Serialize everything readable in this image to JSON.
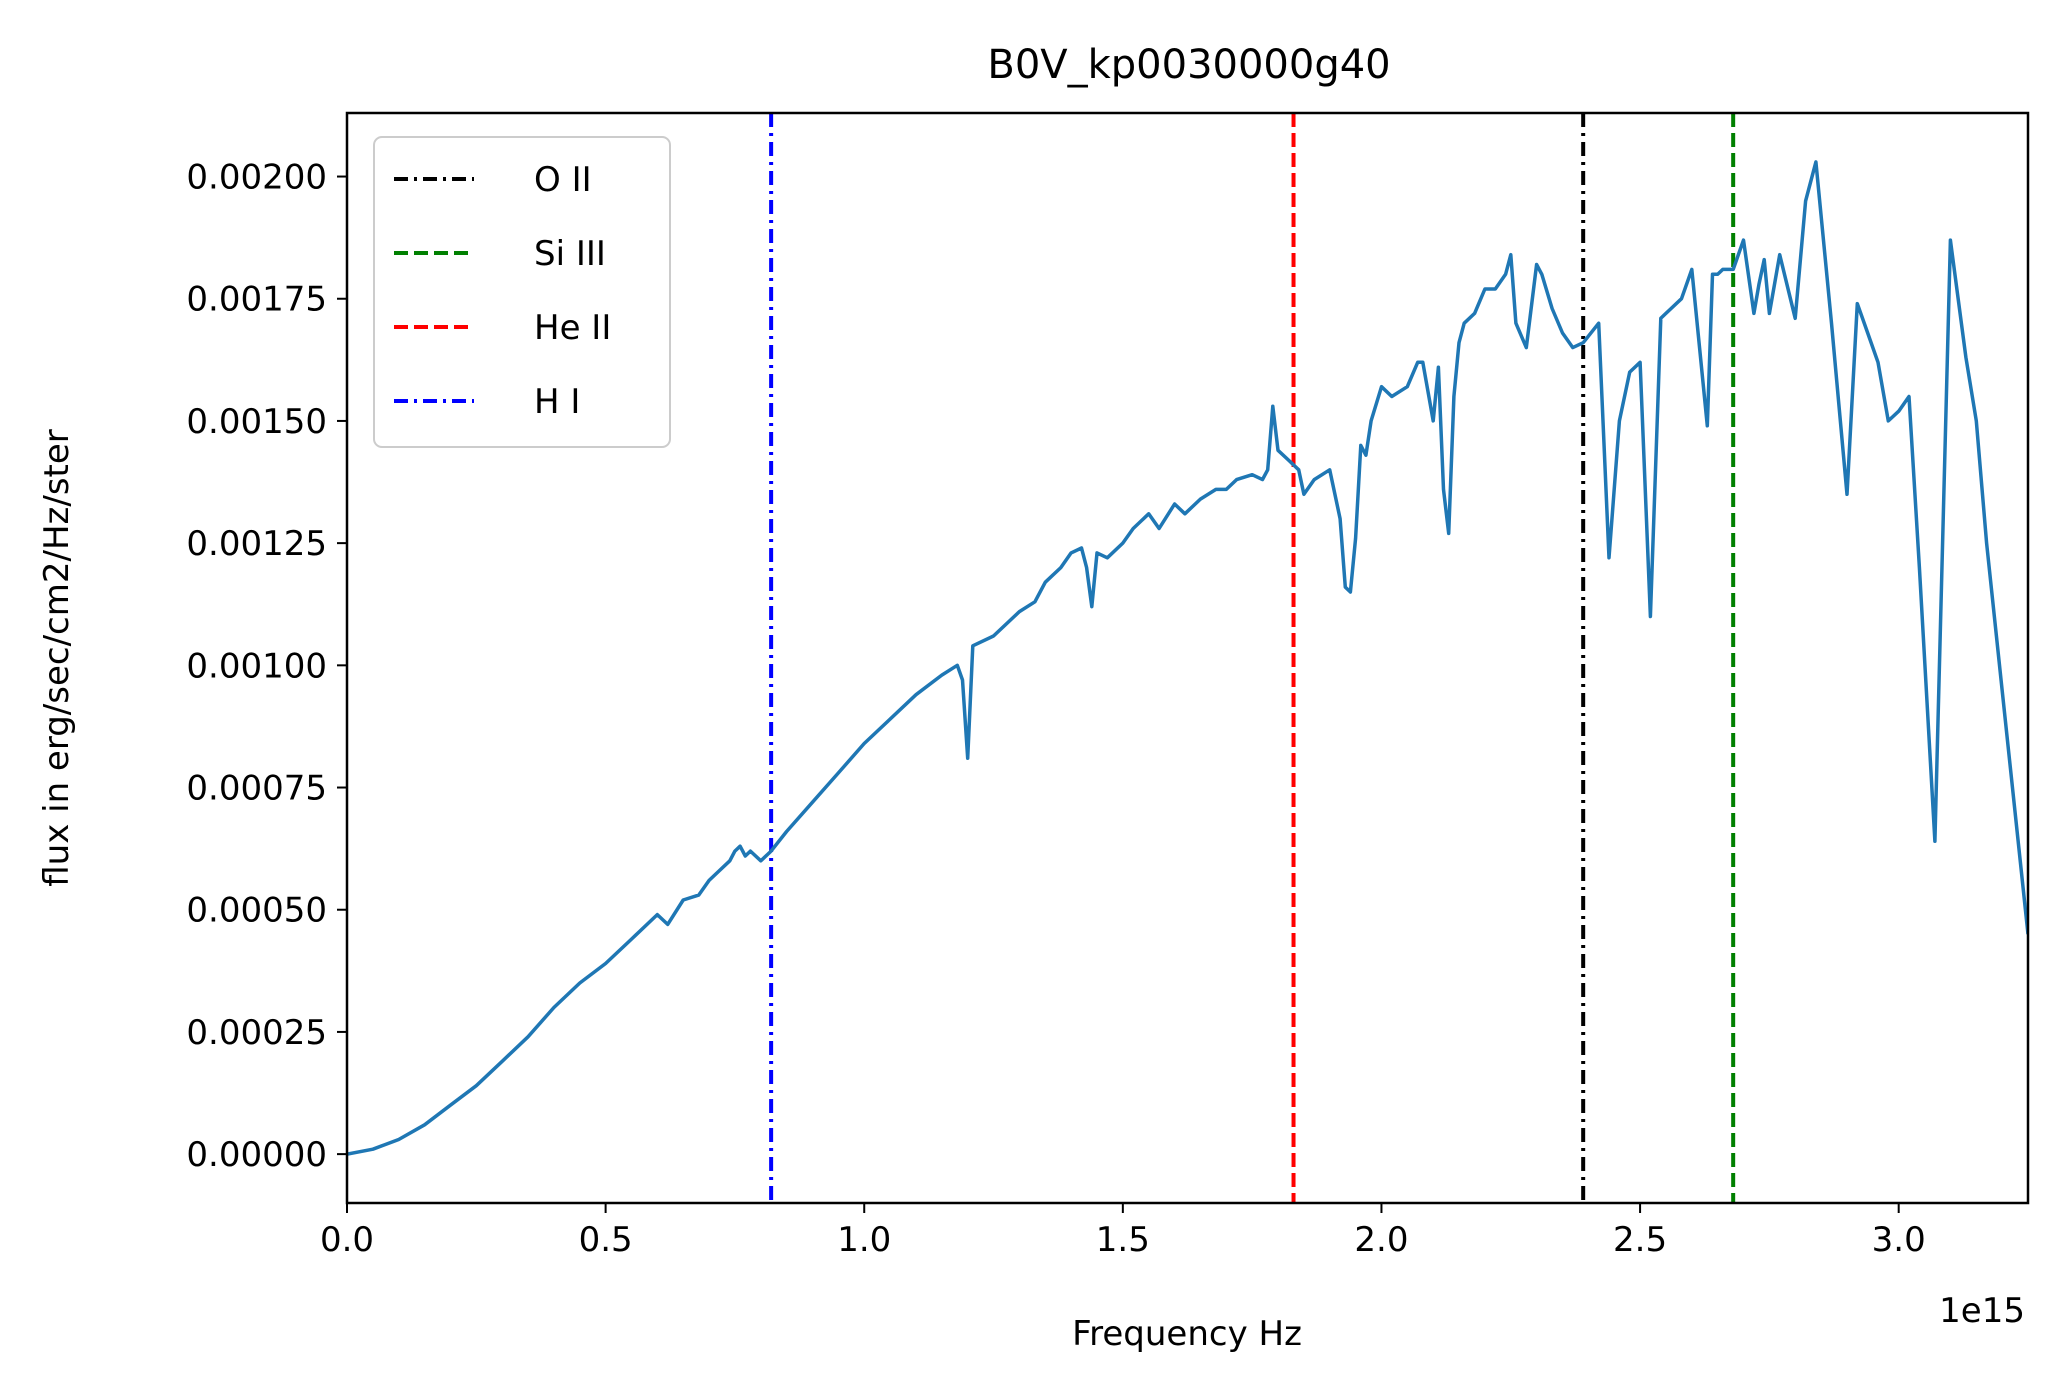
{
  "chart_data": {
    "type": "line",
    "title": "B0V_kp0030000g40",
    "xlabel": "Frequency Hz",
    "ylabel": "flux in erg/sec/cm2/Hz/ster",
    "x_offset_label": "1e15",
    "x_scale": 1000000000000000.0,
    "xlim": [
      0.0,
      3.25
    ],
    "ylim": [
      -0.0001,
      0.00213
    ],
    "x_ticks": [
      0.0,
      0.5,
      1.0,
      1.5,
      2.0,
      2.5,
      3.0
    ],
    "x_tick_labels": [
      "0.0",
      "0.5",
      "1.0",
      "1.5",
      "2.0",
      "2.5",
      "3.0"
    ],
    "y_ticks": [
      0.0,
      0.00025,
      0.0005,
      0.00075,
      0.001,
      0.00125,
      0.0015,
      0.00175,
      0.002
    ],
    "y_tick_labels": [
      "0.00000",
      "0.00025",
      "0.00050",
      "0.00075",
      "0.00100",
      "0.00125",
      "0.00150",
      "0.00175",
      "0.00200"
    ],
    "grid": false,
    "legend_position": "top-left",
    "series": [
      {
        "color": "#1f77b4",
        "x": [
          0.0,
          0.05,
          0.1,
          0.15,
          0.2,
          0.25,
          0.3,
          0.35,
          0.4,
          0.45,
          0.5,
          0.55,
          0.6,
          0.62,
          0.65,
          0.68,
          0.7,
          0.72,
          0.74,
          0.75,
          0.76,
          0.77,
          0.78,
          0.8,
          0.82,
          0.85,
          0.9,
          0.95,
          1.0,
          1.05,
          1.1,
          1.15,
          1.18,
          1.19,
          1.2,
          1.21,
          1.25,
          1.3,
          1.33,
          1.35,
          1.38,
          1.4,
          1.42,
          1.43,
          1.44,
          1.45,
          1.47,
          1.5,
          1.52,
          1.55,
          1.57,
          1.6,
          1.62,
          1.65,
          1.68,
          1.7,
          1.72,
          1.75,
          1.77,
          1.78,
          1.79,
          1.8,
          1.82,
          1.84,
          1.85,
          1.87,
          1.9,
          1.92,
          1.93,
          1.94,
          1.95,
          1.96,
          1.97,
          1.98,
          2.0,
          2.02,
          2.05,
          2.07,
          2.08,
          2.1,
          2.11,
          2.12,
          2.13,
          2.14,
          2.15,
          2.16,
          2.18,
          2.2,
          2.22,
          2.24,
          2.25,
          2.26,
          2.28,
          2.3,
          2.31,
          2.33,
          2.35,
          2.37,
          2.39,
          2.42,
          2.44,
          2.46,
          2.48,
          2.5,
          2.52,
          2.54,
          2.55,
          2.56,
          2.58,
          2.6,
          2.63,
          2.64,
          2.65,
          2.66,
          2.67,
          2.68,
          2.7,
          2.72,
          2.73,
          2.74,
          2.75,
          2.77,
          2.8,
          2.82,
          2.84,
          2.87,
          2.9,
          2.92,
          2.94,
          2.96,
          2.98,
          3.0,
          3.02,
          3.04,
          3.07,
          3.1,
          3.13,
          3.15,
          3.17,
          3.2,
          3.25
        ],
        "y": [
          0.0,
          1e-05,
          3e-05,
          6e-05,
          0.0001,
          0.00014,
          0.00019,
          0.00024,
          0.0003,
          0.00035,
          0.00039,
          0.00044,
          0.00049,
          0.00047,
          0.00052,
          0.00053,
          0.00056,
          0.00058,
          0.0006,
          0.00062,
          0.00063,
          0.00061,
          0.00062,
          0.0006,
          0.00062,
          0.00066,
          0.00072,
          0.00078,
          0.00084,
          0.00089,
          0.00094,
          0.00098,
          0.001,
          0.00097,
          0.00081,
          0.00104,
          0.00106,
          0.00111,
          0.00113,
          0.00117,
          0.0012,
          0.00123,
          0.00124,
          0.0012,
          0.00112,
          0.00123,
          0.00122,
          0.00125,
          0.00128,
          0.00131,
          0.00128,
          0.00133,
          0.00131,
          0.00134,
          0.00136,
          0.00136,
          0.00138,
          0.00139,
          0.00138,
          0.0014,
          0.00153,
          0.00144,
          0.00142,
          0.0014,
          0.00135,
          0.00138,
          0.0014,
          0.0013,
          0.00116,
          0.00115,
          0.00126,
          0.00145,
          0.00143,
          0.0015,
          0.00157,
          0.00155,
          0.00157,
          0.00162,
          0.00162,
          0.0015,
          0.00161,
          0.00136,
          0.00127,
          0.00155,
          0.00166,
          0.0017,
          0.00172,
          0.00177,
          0.00177,
          0.0018,
          0.00184,
          0.0017,
          0.00165,
          0.00182,
          0.0018,
          0.00173,
          0.00168,
          0.00165,
          0.00166,
          0.0017,
          0.00122,
          0.0015,
          0.0016,
          0.00162,
          0.0011,
          0.00171,
          0.00172,
          0.00173,
          0.00175,
          0.00181,
          0.00149,
          0.0018,
          0.0018,
          0.00181,
          0.00181,
          0.00181,
          0.00187,
          0.00172,
          0.00178,
          0.00183,
          0.00172,
          0.00184,
          0.00171,
          0.00195,
          0.00203,
          0.0017,
          0.00135,
          0.00174,
          0.00168,
          0.00162,
          0.0015,
          0.00152,
          0.00155,
          0.0012,
          0.00064,
          0.00187,
          0.00163,
          0.0015,
          0.00125,
          0.00095,
          0.00045
        ]
      }
    ],
    "vlines": [
      {
        "name": "O II",
        "x": 2.39,
        "color": "#000000",
        "style": "dashdot"
      },
      {
        "name": "Si III",
        "x": 2.68,
        "color": "#008000",
        "style": "dashed"
      },
      {
        "name": "He II",
        "x": 1.83,
        "color": "#ff0000",
        "style": "dashed"
      },
      {
        "name": "H I",
        "x": 0.82,
        "color": "#0000ff",
        "style": "dashdot"
      }
    ]
  }
}
